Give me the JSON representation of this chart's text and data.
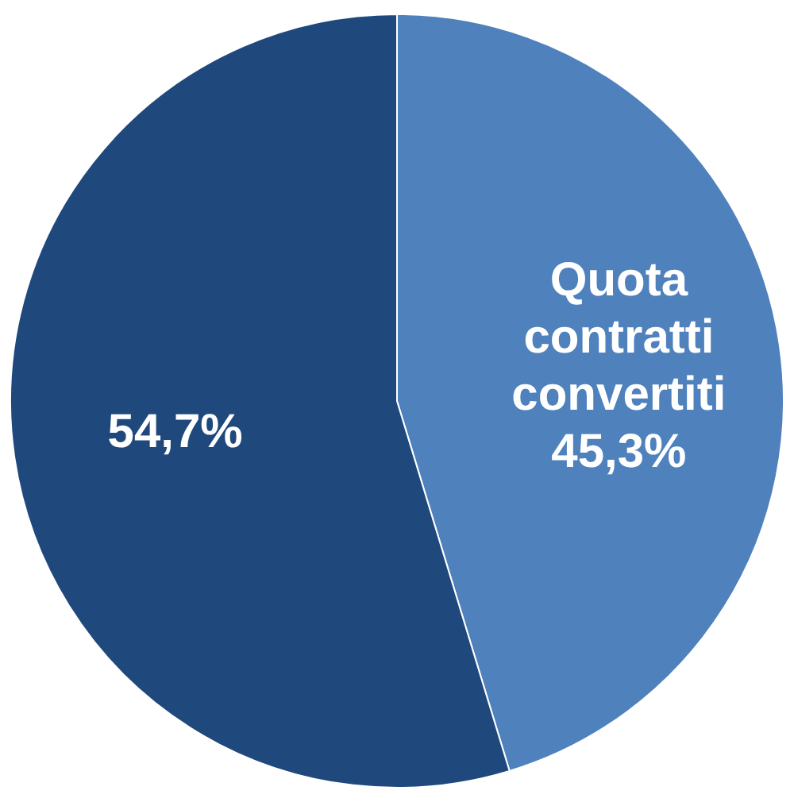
{
  "chart_data": {
    "type": "pie",
    "categories": [
      "Quota contratti convertiti",
      null
    ],
    "values": [
      45.3,
      54.7
    ],
    "colors": [
      "#4f81bd",
      "#1f497d"
    ],
    "value_labels": [
      "45,3%",
      "54,7%"
    ],
    "legend": false
  }
}
